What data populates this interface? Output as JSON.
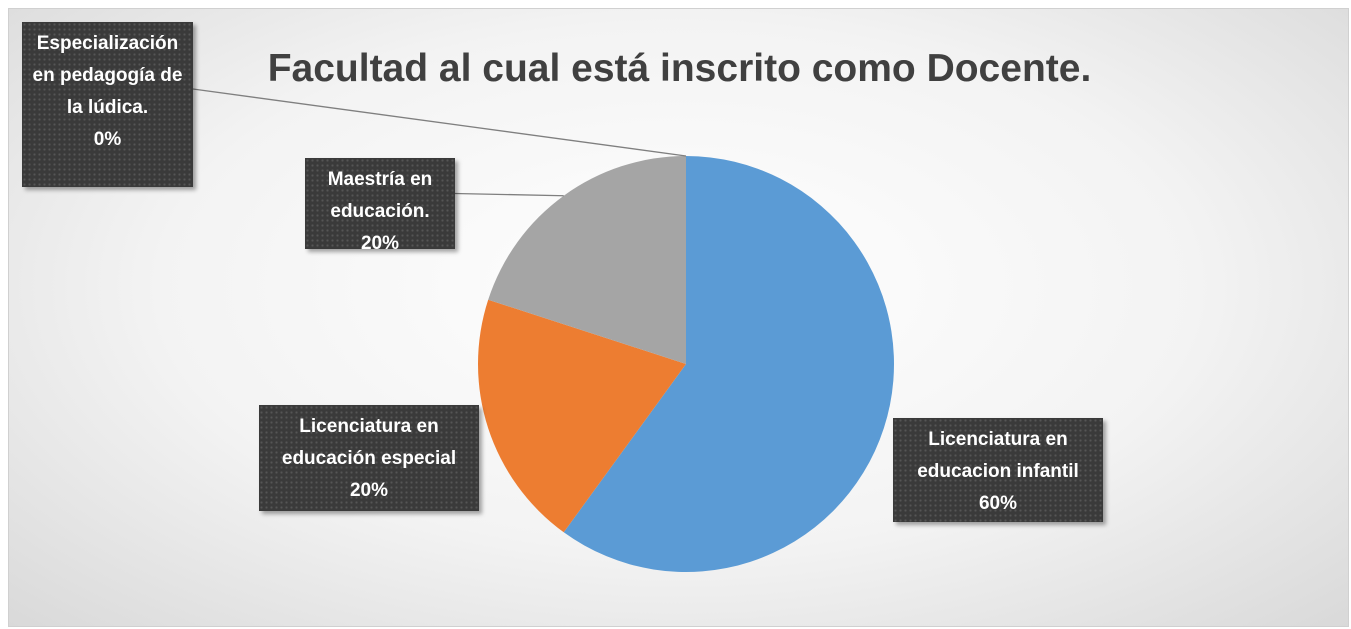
{
  "chart_data": {
    "type": "pie",
    "title": "Facultad al cual está inscrito como Docente.",
    "categories": [
      "Licenciatura en educacion infantil",
      "Licenciatura en educación especial",
      "Maestría en educación.",
      "Especialización en pedagogía de la lúdica."
    ],
    "values": [
      60,
      20,
      20,
      0
    ],
    "value_labels": [
      "60%",
      "20%",
      "20%",
      "0%"
    ],
    "colors": [
      "#5b9bd5",
      "#ed7d31",
      "#a5a5a5",
      "#ffc000"
    ]
  }
}
